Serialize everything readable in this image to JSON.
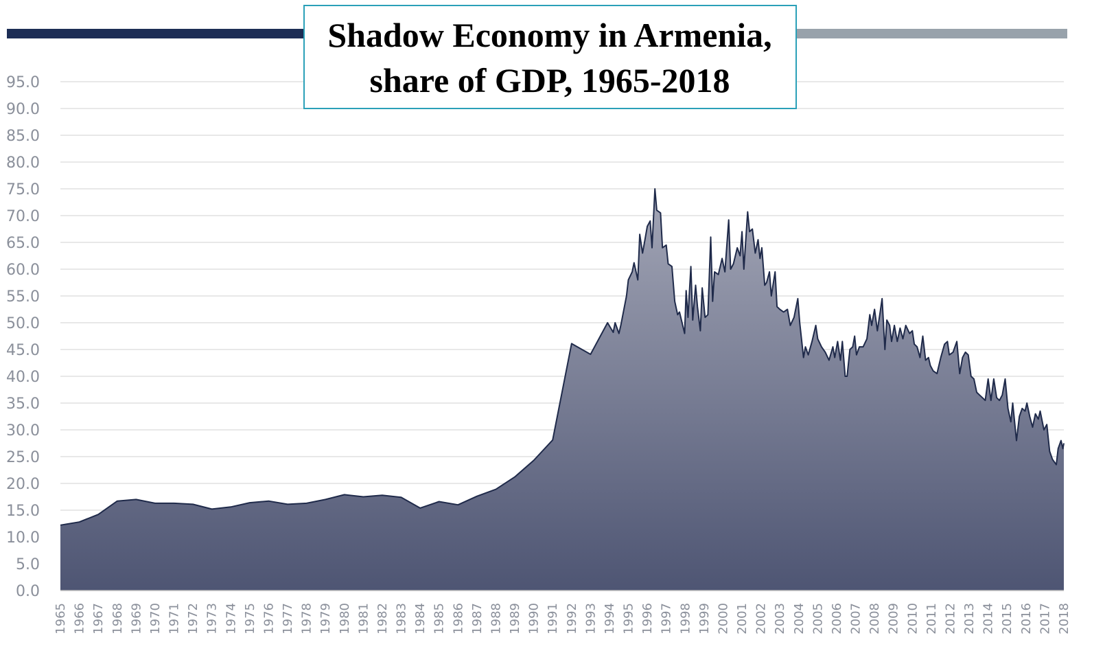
{
  "chart_data": {
    "type": "area",
    "title": [
      "Shadow Economy in Armenia,",
      "share of GDP, 1965-2018"
    ],
    "line_color": "#1f2a4a",
    "fill_top": "#a3a6b6",
    "fill_bottom": "#4e5573",
    "grid": true,
    "xlim": [
      1965,
      2018
    ],
    "xticks": [
      1965,
      1966,
      1967,
      1968,
      1969,
      1970,
      1971,
      1972,
      1973,
      1974,
      1975,
      1976,
      1977,
      1978,
      1979,
      1980,
      1981,
      1982,
      1983,
      1984,
      1985,
      1986,
      1987,
      1988,
      1989,
      1990,
      1991,
      1992,
      1993,
      1994,
      1995,
      1996,
      1997,
      1998,
      1999,
      2000,
      2001,
      2002,
      2003,
      2004,
      2005,
      2006,
      2007,
      2008,
      2009,
      2010,
      2011,
      2012,
      2013,
      2014,
      2015,
      2016,
      2017,
      2018
    ],
    "ylim": [
      0,
      95
    ],
    "yticks": [
      {
        "value": 0,
        "label": "0.0"
      },
      {
        "value": 5,
        "label": "5.0"
      },
      {
        "value": 10,
        "label": "10.0"
      },
      {
        "value": 15,
        "label": "15.0"
      },
      {
        "value": 20,
        "label": "20.0"
      },
      {
        "value": 25,
        "label": "25.0"
      },
      {
        "value": 30,
        "label": "30.0"
      },
      {
        "value": 35,
        "label": "35.0"
      },
      {
        "value": 40,
        "label": "40.0"
      },
      {
        "value": 45,
        "label": "45.0"
      },
      {
        "value": 50,
        "label": "50.0"
      },
      {
        "value": 55,
        "label": "55.0"
      },
      {
        "value": 60,
        "label": "60.0"
      },
      {
        "value": 65,
        "label": "65.0"
      },
      {
        "value": 70,
        "label": "70.0"
      },
      {
        "value": 75,
        "label": "75.0"
      },
      {
        "value": 80,
        "label": "80.0"
      },
      {
        "value": 85,
        "label": "85.0"
      },
      {
        "value": 90,
        "label": "90.0"
      },
      {
        "value": 95,
        "label": "95.0"
      }
    ],
    "x": [
      1965,
      1966,
      1967,
      1968,
      1969,
      1970,
      1971,
      1972,
      1973,
      1974,
      1975,
      1976,
      1977,
      1978,
      1979,
      1980,
      1981,
      1982,
      1983,
      1984,
      1985,
      1986,
      1987,
      1988,
      1989,
      1990,
      1991,
      1992,
      1993,
      1993.9,
      1994.2,
      1994.3,
      1994.5,
      1994.6,
      1994.9,
      1995.0,
      1995.2,
      1995.3,
      1995.5,
      1995.6,
      1995.75,
      1995.85,
      1996.0,
      1996.15,
      1996.25,
      1996.4,
      1996.5,
      1996.7,
      1996.8,
      1997.0,
      1997.1,
      1997.3,
      1997.45,
      1997.6,
      1997.7,
      1997.97,
      1998.05,
      1998.15,
      1998.3,
      1998.4,
      1998.55,
      1998.65,
      1998.8,
      1998.9,
      1999.05,
      1999.2,
      1999.35,
      1999.45,
      1999.55,
      1999.75,
      1999.95,
      2000.1,
      2000.3,
      2000.4,
      2000.55,
      2000.75,
      2000.9,
      2001.0,
      2001.1,
      2001.3,
      2001.4,
      2001.55,
      2001.7,
      2001.85,
      2001.95,
      2002.05,
      2002.2,
      2002.3,
      2002.45,
      2002.55,
      2002.75,
      2002.85,
      2003.0,
      2003.2,
      2003.4,
      2003.55,
      2003.75,
      2003.95,
      2004.05,
      2004.25,
      2004.35,
      2004.5,
      2004.7,
      2004.9,
      2005.0,
      2005.2,
      2005.4,
      2005.6,
      2005.8,
      2005.9,
      2006.05,
      2006.2,
      2006.3,
      2006.45,
      2006.55,
      2006.7,
      2006.85,
      2006.95,
      2007.05,
      2007.2,
      2007.4,
      2007.6,
      2007.75,
      2007.85,
      2008.0,
      2008.15,
      2008.3,
      2008.4,
      2008.55,
      2008.65,
      2008.8,
      2008.9,
      2009.05,
      2009.2,
      2009.35,
      2009.5,
      2009.65,
      2009.85,
      2010.0,
      2010.1,
      2010.25,
      2010.4,
      2010.55,
      2010.7,
      2010.85,
      2010.95,
      2011.1,
      2011.3,
      2011.5,
      2011.7,
      2011.85,
      2011.95,
      2012.15,
      2012.35,
      2012.5,
      2012.65,
      2012.8,
      2012.95,
      2013.1,
      2013.25,
      2013.4,
      2013.55,
      2013.7,
      2013.85,
      2014.0,
      2014.15,
      2014.3,
      2014.45,
      2014.6,
      2014.75,
      2014.9,
      2015.05,
      2015.2,
      2015.3,
      2015.5,
      2015.65,
      2015.8,
      2015.95,
      2016.05,
      2016.2,
      2016.35,
      2016.5,
      2016.65,
      2016.75,
      2016.95,
      2017.1,
      2017.25,
      2017.4,
      2017.6,
      2017.7,
      2017.85,
      2017.95,
      2018.0
    ],
    "values": [
      12.2,
      12.8,
      14.2,
      16.7,
      17.0,
      16.3,
      16.3,
      16.1,
      15.2,
      15.6,
      16.4,
      16.7,
      16.1,
      16.3,
      17.0,
      17.9,
      17.5,
      17.8,
      17.4,
      15.4,
      16.6,
      16.0,
      17.6,
      18.9,
      21.2,
      24.3,
      28.1,
      46.1,
      44.1,
      50.0,
      48.2,
      50.0,
      48.0,
      49.5,
      55,
      58,
      59.5,
      61.2,
      58,
      66.5,
      63,
      65,
      68,
      69,
      64,
      75,
      71,
      70.5,
      64,
      64.5,
      61,
      60.5,
      54,
      51.5,
      52,
      48,
      56,
      51,
      60.5,
      50.5,
      57,
      53,
      48.5,
      56.5,
      51,
      51.5,
      66,
      54,
      59.5,
      59,
      62,
      59.5,
      69.2,
      60,
      61,
      64,
      62.5,
      67,
      60,
      70.7,
      67,
      67.5,
      63,
      65.5,
      62,
      64,
      57,
      57.5,
      59.5,
      55,
      59.5,
      53,
      52.5,
      52,
      52.5,
      49.5,
      51,
      54.5,
      50,
      43.5,
      45.5,
      44,
      46.5,
      49.5,
      47,
      45.5,
      44.5,
      43,
      45.5,
      43.5,
      46.5,
      43,
      46.5,
      40,
      40,
      45,
      45.5,
      47.5,
      44,
      45.5,
      45.5,
      47,
      51.5,
      49.5,
      52.5,
      48.5,
      52,
      54.5,
      45,
      50.5,
      49.5,
      46.5,
      49.5,
      46.5,
      49,
      47,
      49.5,
      48,
      48.5,
      46,
      45.5,
      43.5,
      47.5,
      43,
      43.5,
      42,
      41,
      40.5,
      43.5,
      46,
      46.5,
      44,
      44.5,
      46.5,
      40.5,
      43.5,
      44.5,
      44,
      40,
      39.5,
      37,
      36.5,
      36,
      35.5,
      39.5,
      35.5,
      39.5,
      36,
      35.5,
      36.5,
      39.5,
      34,
      31.5,
      35,
      28,
      32.5,
      34,
      33.5,
      35,
      32.5,
      30.5,
      33,
      32,
      33.5,
      30,
      31,
      26,
      24.5,
      23.5,
      26.5,
      28,
      26.5,
      27.5
    ]
  }
}
